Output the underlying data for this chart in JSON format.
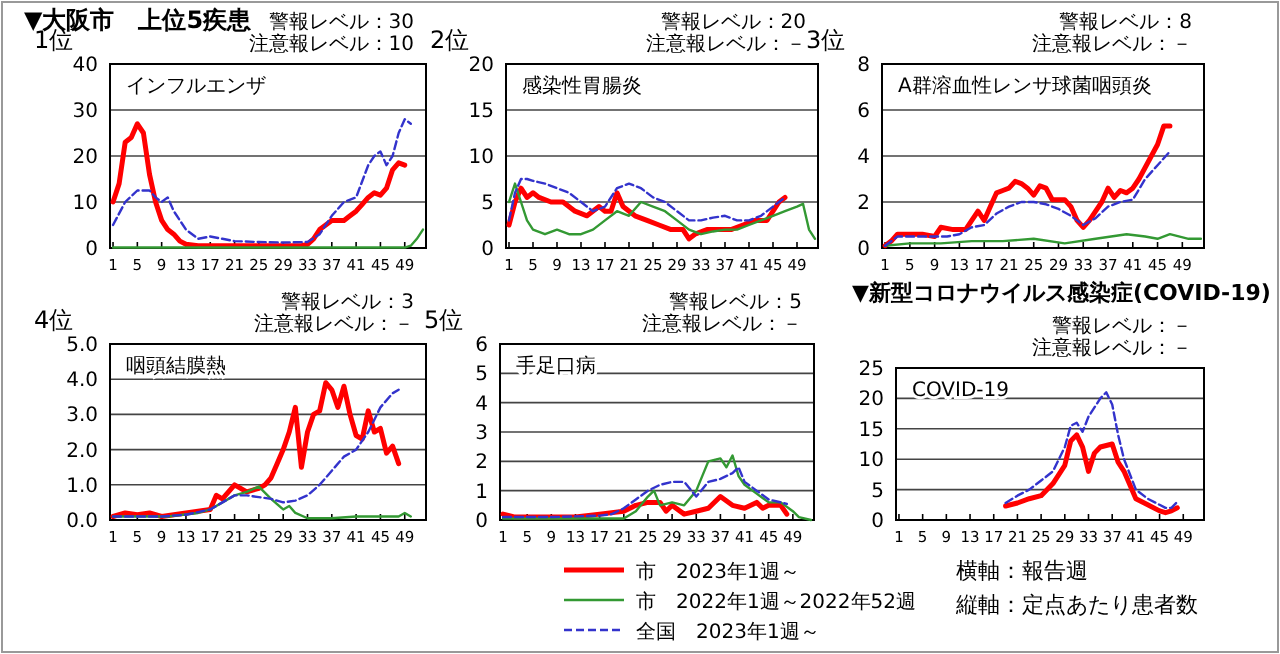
{
  "chart_data": [
    {
      "type": "line",
      "title": "インフルエンザ",
      "subtitle": "1位",
      "annotations": [
        "▼大阪市　上位5疾患",
        "警報レベル：30",
        "注意報レベル：10"
      ],
      "xlim": [
        0.5,
        52.5
      ],
      "xticks": [
        1,
        5,
        9,
        13,
        17,
        21,
        25,
        29,
        33,
        37,
        41,
        45,
        49
      ],
      "ylim": [
        0,
        40
      ],
      "yticks": [
        0,
        10,
        20,
        30,
        40
      ],
      "grid": "y",
      "series": [
        {
          "color": "#ff0000",
          "line_style": "solid",
          "x": [
            1,
            2,
            3,
            4,
            5,
            6,
            7,
            8,
            9,
            10,
            11,
            12,
            13,
            15,
            20,
            25,
            30,
            32,
            33,
            34,
            35,
            36,
            37,
            38,
            39,
            40,
            41,
            42,
            43,
            44,
            45,
            46,
            47,
            48,
            49
          ],
          "values": [
            10,
            14,
            23,
            24,
            27,
            25,
            16,
            10,
            6,
            4,
            3,
            1.5,
            0.8,
            0.5,
            0.5,
            0.5,
            0.5,
            0.5,
            0.8,
            2,
            4,
            5,
            6,
            6,
            6,
            7,
            8,
            9.5,
            11,
            12,
            11.5,
            13,
            17,
            18.5,
            18
          ]
        },
        {
          "color": "#339933",
          "line_style": "solid",
          "x": [
            1,
            10,
            20,
            30,
            40,
            49,
            50,
            51,
            52
          ],
          "values": [
            0.1,
            0.1,
            0.1,
            0.1,
            0.1,
            0.1,
            0.5,
            2,
            4
          ]
        },
        {
          "color": "#3333cc",
          "line_style": "dashed",
          "x": [
            1,
            3,
            5,
            7,
            8,
            9,
            10,
            11,
            13,
            15,
            17,
            19,
            21,
            25,
            29,
            33,
            35,
            37,
            39,
            41,
            43,
            44,
            45,
            46,
            47,
            48,
            49,
            50
          ],
          "values": [
            5,
            10,
            12.5,
            12.5,
            11,
            10,
            11,
            8,
            4,
            2,
            2.5,
            2,
            1.5,
            1.3,
            1.2,
            1.3,
            3,
            7,
            10,
            11,
            18,
            20,
            21,
            18,
            20,
            25,
            28,
            27
          ]
        }
      ]
    },
    {
      "type": "line",
      "title": "感染性胃腸炎",
      "subtitle": "2位",
      "annotations": [
        "警報レベル：20",
        "注意報レベル：－"
      ],
      "xlim": [
        0.5,
        52.5
      ],
      "xticks": [
        1,
        5,
        9,
        13,
        17,
        21,
        25,
        29,
        33,
        37,
        41,
        45,
        49
      ],
      "ylim": [
        0,
        20
      ],
      "yticks": [
        0,
        5,
        10,
        15,
        20
      ],
      "grid": "y",
      "series": [
        {
          "color": "#ff0000",
          "line_style": "solid",
          "x": [
            1,
            2,
            3,
            4,
            5,
            6,
            8,
            10,
            12,
            14,
            16,
            17,
            18,
            19,
            20,
            22,
            24,
            26,
            28,
            30,
            31,
            32,
            34,
            36,
            38,
            40,
            42,
            44,
            45,
            46,
            47
          ],
          "values": [
            2.5,
            5,
            6.5,
            5.5,
            6,
            5.5,
            5,
            5,
            4,
            3.5,
            4.5,
            4,
            4,
            6,
            4.5,
            3.5,
            3,
            2.5,
            2,
            2,
            1,
            1.5,
            2,
            2,
            2,
            2.5,
            3,
            3,
            4,
            5,
            5.5
          ]
        },
        {
          "color": "#339933",
          "line_style": "solid",
          "x": [
            1,
            2,
            3,
            4,
            5,
            7,
            9,
            11,
            13,
            15,
            17,
            19,
            21,
            23,
            25,
            27,
            29,
            31,
            33,
            35,
            37,
            39,
            41,
            43,
            45,
            47,
            49,
            50,
            51,
            52
          ],
          "values": [
            5,
            7,
            5,
            3,
            2,
            1.5,
            2,
            1.5,
            1.5,
            2,
            3,
            4,
            3.5,
            5,
            4.5,
            4,
            3,
            2,
            1.5,
            1.8,
            2,
            2,
            2.5,
            3,
            3.5,
            4,
            4.5,
            4.8,
            2,
            1
          ]
        },
        {
          "color": "#3333cc",
          "line_style": "dashed",
          "x": [
            1,
            2,
            3,
            4,
            5,
            7,
            9,
            11,
            13,
            15,
            17,
            19,
            21,
            23,
            25,
            27,
            29,
            31,
            33,
            35,
            37,
            39,
            41,
            43,
            45,
            47
          ],
          "values": [
            3,
            6,
            7.5,
            7.5,
            7.3,
            7,
            6.5,
            6,
            5,
            4,
            4.5,
            6.5,
            7,
            6.5,
            5.5,
            5,
            4,
            3,
            3,
            3.3,
            3.5,
            3,
            3,
            3.5,
            4.5,
            5.5
          ]
        }
      ]
    },
    {
      "type": "line",
      "title": "A群溶血性レンサ球菌咽頭炎",
      "subtitle": "3位",
      "annotations": [
        "警報レベル：8",
        "注意報レベル：－"
      ],
      "xlim": [
        0.5,
        52.5
      ],
      "xticks": [
        1,
        5,
        9,
        13,
        17,
        21,
        25,
        29,
        33,
        37,
        41,
        45,
        49
      ],
      "ylim": [
        0,
        8
      ],
      "yticks": [
        0,
        2,
        4,
        6,
        8
      ],
      "grid": "y",
      "series": [
        {
          "color": "#ff0000",
          "line_style": "solid",
          "x": [
            1,
            2,
            3,
            5,
            7,
            9,
            10,
            12,
            14,
            15,
            16,
            17,
            18,
            19,
            20,
            21,
            22,
            23,
            24,
            25,
            26,
            27,
            28,
            30,
            31,
            32,
            33,
            34,
            35,
            36,
            37,
            38,
            39,
            40,
            41,
            42,
            43,
            44,
            45,
            46,
            47
          ],
          "values": [
            0.1,
            0.3,
            0.6,
            0.6,
            0.6,
            0.5,
            0.9,
            0.8,
            0.8,
            1.2,
            1.6,
            1.2,
            1.8,
            2.4,
            2.5,
            2.6,
            2.9,
            2.8,
            2.6,
            2.3,
            2.7,
            2.6,
            2.1,
            2.1,
            1.8,
            1.2,
            0.9,
            1.2,
            1.6,
            2,
            2.6,
            2.2,
            2.5,
            2.4,
            2.6,
            3,
            3.5,
            4,
            4.5,
            5.3,
            5.3
          ]
        },
        {
          "color": "#339933",
          "line_style": "solid",
          "x": [
            1,
            5,
            10,
            15,
            20,
            25,
            30,
            35,
            40,
            43,
            45,
            47,
            50,
            52
          ],
          "values": [
            0.1,
            0.2,
            0.2,
            0.3,
            0.3,
            0.4,
            0.2,
            0.4,
            0.6,
            0.5,
            0.4,
            0.6,
            0.4,
            0.4
          ]
        },
        {
          "color": "#3333cc",
          "line_style": "dashed",
          "x": [
            1,
            3,
            5,
            7,
            9,
            11,
            13,
            15,
            17,
            19,
            21,
            23,
            25,
            27,
            29,
            31,
            33,
            35,
            37,
            39,
            41,
            43,
            45,
            47
          ],
          "values": [
            0.1,
            0.5,
            0.5,
            0.5,
            0.5,
            0.5,
            0.6,
            0.9,
            1,
            1.5,
            1.8,
            2,
            2,
            1.9,
            1.7,
            1.4,
            1,
            1.3,
            1.8,
            2,
            2.1,
            3,
            3.6,
            4.2
          ]
        }
      ]
    },
    {
      "type": "line",
      "title": "咽頭結膜熱",
      "subtitle": "4位",
      "annotations": [
        "警報レベル：3",
        "注意報レベル：－"
      ],
      "xlim": [
        0.5,
        52.5
      ],
      "xticks": [
        1,
        5,
        9,
        13,
        17,
        21,
        25,
        29,
        33,
        37,
        41,
        45,
        49
      ],
      "ylim": [
        0,
        5
      ],
      "yticks": [
        {
          "value": 0,
          "label": "0.0"
        },
        {
          "value": 1,
          "label": "1.0"
        },
        {
          "value": 2,
          "label": "2.0"
        },
        {
          "value": 3,
          "label": "3.0"
        },
        {
          "value": 4,
          "label": "4.0"
        },
        {
          "value": 5,
          "label": "5.0"
        }
      ],
      "grid": "y",
      "series": [
        {
          "color": "#ff0000",
          "line_style": "solid",
          "x": [
            1,
            3,
            5,
            7,
            9,
            11,
            13,
            15,
            17,
            18,
            19,
            20,
            21,
            22,
            23,
            24,
            25,
            26,
            27,
            28,
            29,
            30,
            31,
            32,
            33,
            34,
            35,
            36,
            37,
            38,
            39,
            40,
            41,
            42,
            43,
            44,
            45,
            46,
            47,
            48
          ],
          "values": [
            0.1,
            0.2,
            0.15,
            0.2,
            0.1,
            0.15,
            0.2,
            0.25,
            0.3,
            0.7,
            0.6,
            0.8,
            1,
            0.9,
            0.8,
            0.85,
            0.9,
            1,
            1.2,
            1.6,
            2,
            2.5,
            3.2,
            1.5,
            2.5,
            3,
            3.1,
            3.9,
            3.7,
            3.2,
            3.8,
            3,
            2.4,
            2.3,
            3.1,
            2.5,
            2.6,
            1.9,
            2.1,
            1.6
          ]
        },
        {
          "color": "#339933",
          "line_style": "solid",
          "x": [
            1,
            5,
            10,
            15,
            17,
            19,
            21,
            23,
            25,
            27,
            29,
            30,
            31,
            33,
            37,
            41,
            45,
            48,
            49,
            50
          ],
          "values": [
            0.1,
            0.1,
            0.1,
            0.2,
            0.3,
            0.5,
            0.7,
            0.8,
            0.95,
            0.6,
            0.3,
            0.4,
            0.2,
            0.05,
            0.05,
            0.1,
            0.1,
            0.1,
            0.2,
            0.1
          ]
        },
        {
          "color": "#3333cc",
          "line_style": "dashed",
          "x": [
            1,
            5,
            9,
            13,
            17,
            19,
            21,
            23,
            25,
            27,
            29,
            31,
            33,
            35,
            37,
            39,
            41,
            43,
            45,
            47,
            48
          ],
          "values": [
            0.1,
            0.1,
            0.1,
            0.15,
            0.3,
            0.5,
            0.7,
            0.7,
            0.65,
            0.6,
            0.5,
            0.55,
            0.7,
            1,
            1.4,
            1.8,
            2,
            2.5,
            3.2,
            3.6,
            3.7
          ]
        }
      ]
    },
    {
      "type": "line",
      "title": "手足口病",
      "subtitle": "5位",
      "annotations": [
        "警報レベル：5",
        "注意報レベル：－"
      ],
      "xlim": [
        0.5,
        52.5
      ],
      "xticks": [
        1,
        5,
        9,
        13,
        17,
        21,
        25,
        29,
        33,
        37,
        41,
        45,
        49
      ],
      "ylim": [
        0,
        6
      ],
      "yticks": [
        0,
        1,
        2,
        3,
        4,
        5,
        6
      ],
      "grid": "y",
      "legend": "bottom",
      "series": [
        {
          "name": "市　2023年1週～",
          "color": "#ff0000",
          "line_style": "solid",
          "x": [
            1,
            3,
            9,
            13,
            17,
            21,
            23,
            25,
            27,
            28,
            29,
            31,
            33,
            35,
            37,
            39,
            41,
            43,
            44,
            45,
            47,
            48
          ],
          "values": [
            0.2,
            0.1,
            0.1,
            0.1,
            0.2,
            0.3,
            0.5,
            0.6,
            0.6,
            0.3,
            0.5,
            0.2,
            0.3,
            0.4,
            0.8,
            0.5,
            0.4,
            0.6,
            0.4,
            0.5,
            0.5,
            0.2
          ]
        },
        {
          "name": "市　2022年1週～2022年52週",
          "color": "#339933",
          "line_style": "solid",
          "x": [
            1,
            21,
            23,
            25,
            26,
            27,
            29,
            31,
            33,
            35,
            37,
            38,
            39,
            40,
            41,
            43,
            45,
            47,
            49,
            50,
            52
          ],
          "values": [
            0.05,
            0.05,
            0.3,
            0.8,
            1,
            0.5,
            0.6,
            0.5,
            1,
            2,
            2.1,
            1.8,
            2.2,
            1.5,
            1.2,
            0.9,
            0.6,
            0.6,
            0.3,
            0.1,
            0
          ]
        },
        {
          "name": "全国　2023年1週～",
          "color": "#3333cc",
          "line_style": "dashed",
          "x": [
            1,
            9,
            17,
            19,
            21,
            23,
            25,
            27,
            29,
            31,
            33,
            35,
            37,
            39,
            40,
            41,
            43,
            45,
            47,
            48
          ],
          "values": [
            0.1,
            0.1,
            0.15,
            0.2,
            0.4,
            0.7,
            1,
            1.2,
            1.3,
            1.3,
            0.8,
            1.3,
            1.4,
            1.6,
            1.8,
            1.3,
            1,
            0.7,
            0.6,
            0.55
          ]
        }
      ]
    },
    {
      "type": "line",
      "title": "COVID-19",
      "annotations": [
        "▼新型コロナウイルス感染症(COVID-19)",
        "警報レベル：－",
        "注意報レベル：－",
        "横軸：報告週",
        "縦軸：定点あたり患者数"
      ],
      "xlim": [
        0.5,
        52.5
      ],
      "xticks": [
        1,
        5,
        9,
        13,
        17,
        21,
        25,
        29,
        33,
        37,
        41,
        45,
        49
      ],
      "ylim": [
        0,
        25
      ],
      "yticks": [
        0,
        5,
        10,
        15,
        20,
        25
      ],
      "grid": "y",
      "series": [
        {
          "color": "#ff0000",
          "line_style": "solid",
          "x": [
            19,
            21,
            23,
            25,
            27,
            29,
            30,
            31,
            32,
            33,
            34,
            35,
            37,
            38,
            39,
            41,
            43,
            45,
            46,
            47,
            48
          ],
          "values": [
            2.3,
            2.8,
            3.5,
            4,
            6,
            9,
            13,
            14,
            12,
            8,
            11,
            12,
            12.5,
            9.5,
            8,
            3.5,
            2.5,
            1.5,
            1.2,
            1.5,
            2
          ]
        },
        {
          "color": "#3333cc",
          "line_style": "dashed",
          "x": [
            19,
            21,
            23,
            25,
            27,
            29,
            30,
            31,
            32,
            33,
            35,
            36,
            37,
            38,
            39,
            41,
            43,
            45,
            46,
            47,
            48
          ],
          "values": [
            2.8,
            4,
            5,
            6.5,
            8,
            12,
            15.5,
            16,
            14.5,
            17,
            20,
            21,
            19,
            14,
            10,
            5,
            3.5,
            2.5,
            2,
            2,
            3
          ]
        }
      ]
    }
  ]
}
